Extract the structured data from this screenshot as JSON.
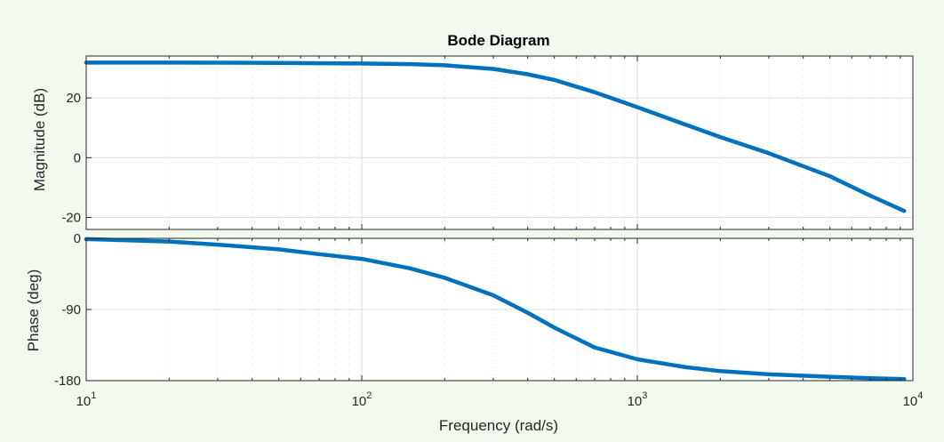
{
  "chart_data": {
    "type": "line",
    "title": "Bode Diagram",
    "xlabel": "Frequency  (rad/s)",
    "x_scale": "log",
    "xlim": [
      10,
      10000
    ],
    "x_ticks": [
      10,
      100,
      1000,
      10000
    ],
    "x_tick_labels": [
      {
        "base": "10",
        "exp": "1"
      },
      {
        "base": "10",
        "exp": "2"
      },
      {
        "base": "10",
        "exp": "3"
      },
      {
        "base": "10",
        "exp": "4"
      }
    ],
    "grid": true,
    "line_color": "#0072bd",
    "plots": [
      {
        "ylabel": "Magnitude (dB)",
        "ylim": [
          -24,
          34
        ],
        "y_ticks": [
          20,
          0,
          -20
        ],
        "y_tick_labels": [
          "20",
          "0",
          "-20"
        ],
        "x": [
          10,
          20,
          50,
          100,
          150,
          200,
          300,
          400,
          500,
          700,
          1000,
          1500,
          2000,
          3000,
          5000,
          7000,
          9300
        ],
        "y": [
          31.8,
          31.8,
          31.7,
          31.5,
          31.3,
          30.9,
          29.7,
          27.9,
          26.0,
          21.9,
          16.9,
          11.0,
          6.9,
          1.5,
          -6.2,
          -12.7,
          -17.8
        ]
      },
      {
        "ylabel": "Phase (deg)",
        "ylim": [
          -180,
          0
        ],
        "y_ticks": [
          0,
          -90,
          -180
        ],
        "y_tick_labels": [
          "0",
          "-90",
          "-180"
        ],
        "x": [
          10,
          20,
          30,
          50,
          70,
          100,
          150,
          200,
          300,
          400,
          500,
          700,
          1000,
          1500,
          2000,
          3000,
          5000,
          7000,
          9300
        ],
        "y": [
          -1,
          -4,
          -8,
          -14,
          -20,
          -26,
          -38,
          -50,
          -72,
          -94,
          -113,
          -138,
          -153,
          -163,
          -168,
          -172,
          -175,
          -177,
          -178
        ]
      }
    ]
  }
}
